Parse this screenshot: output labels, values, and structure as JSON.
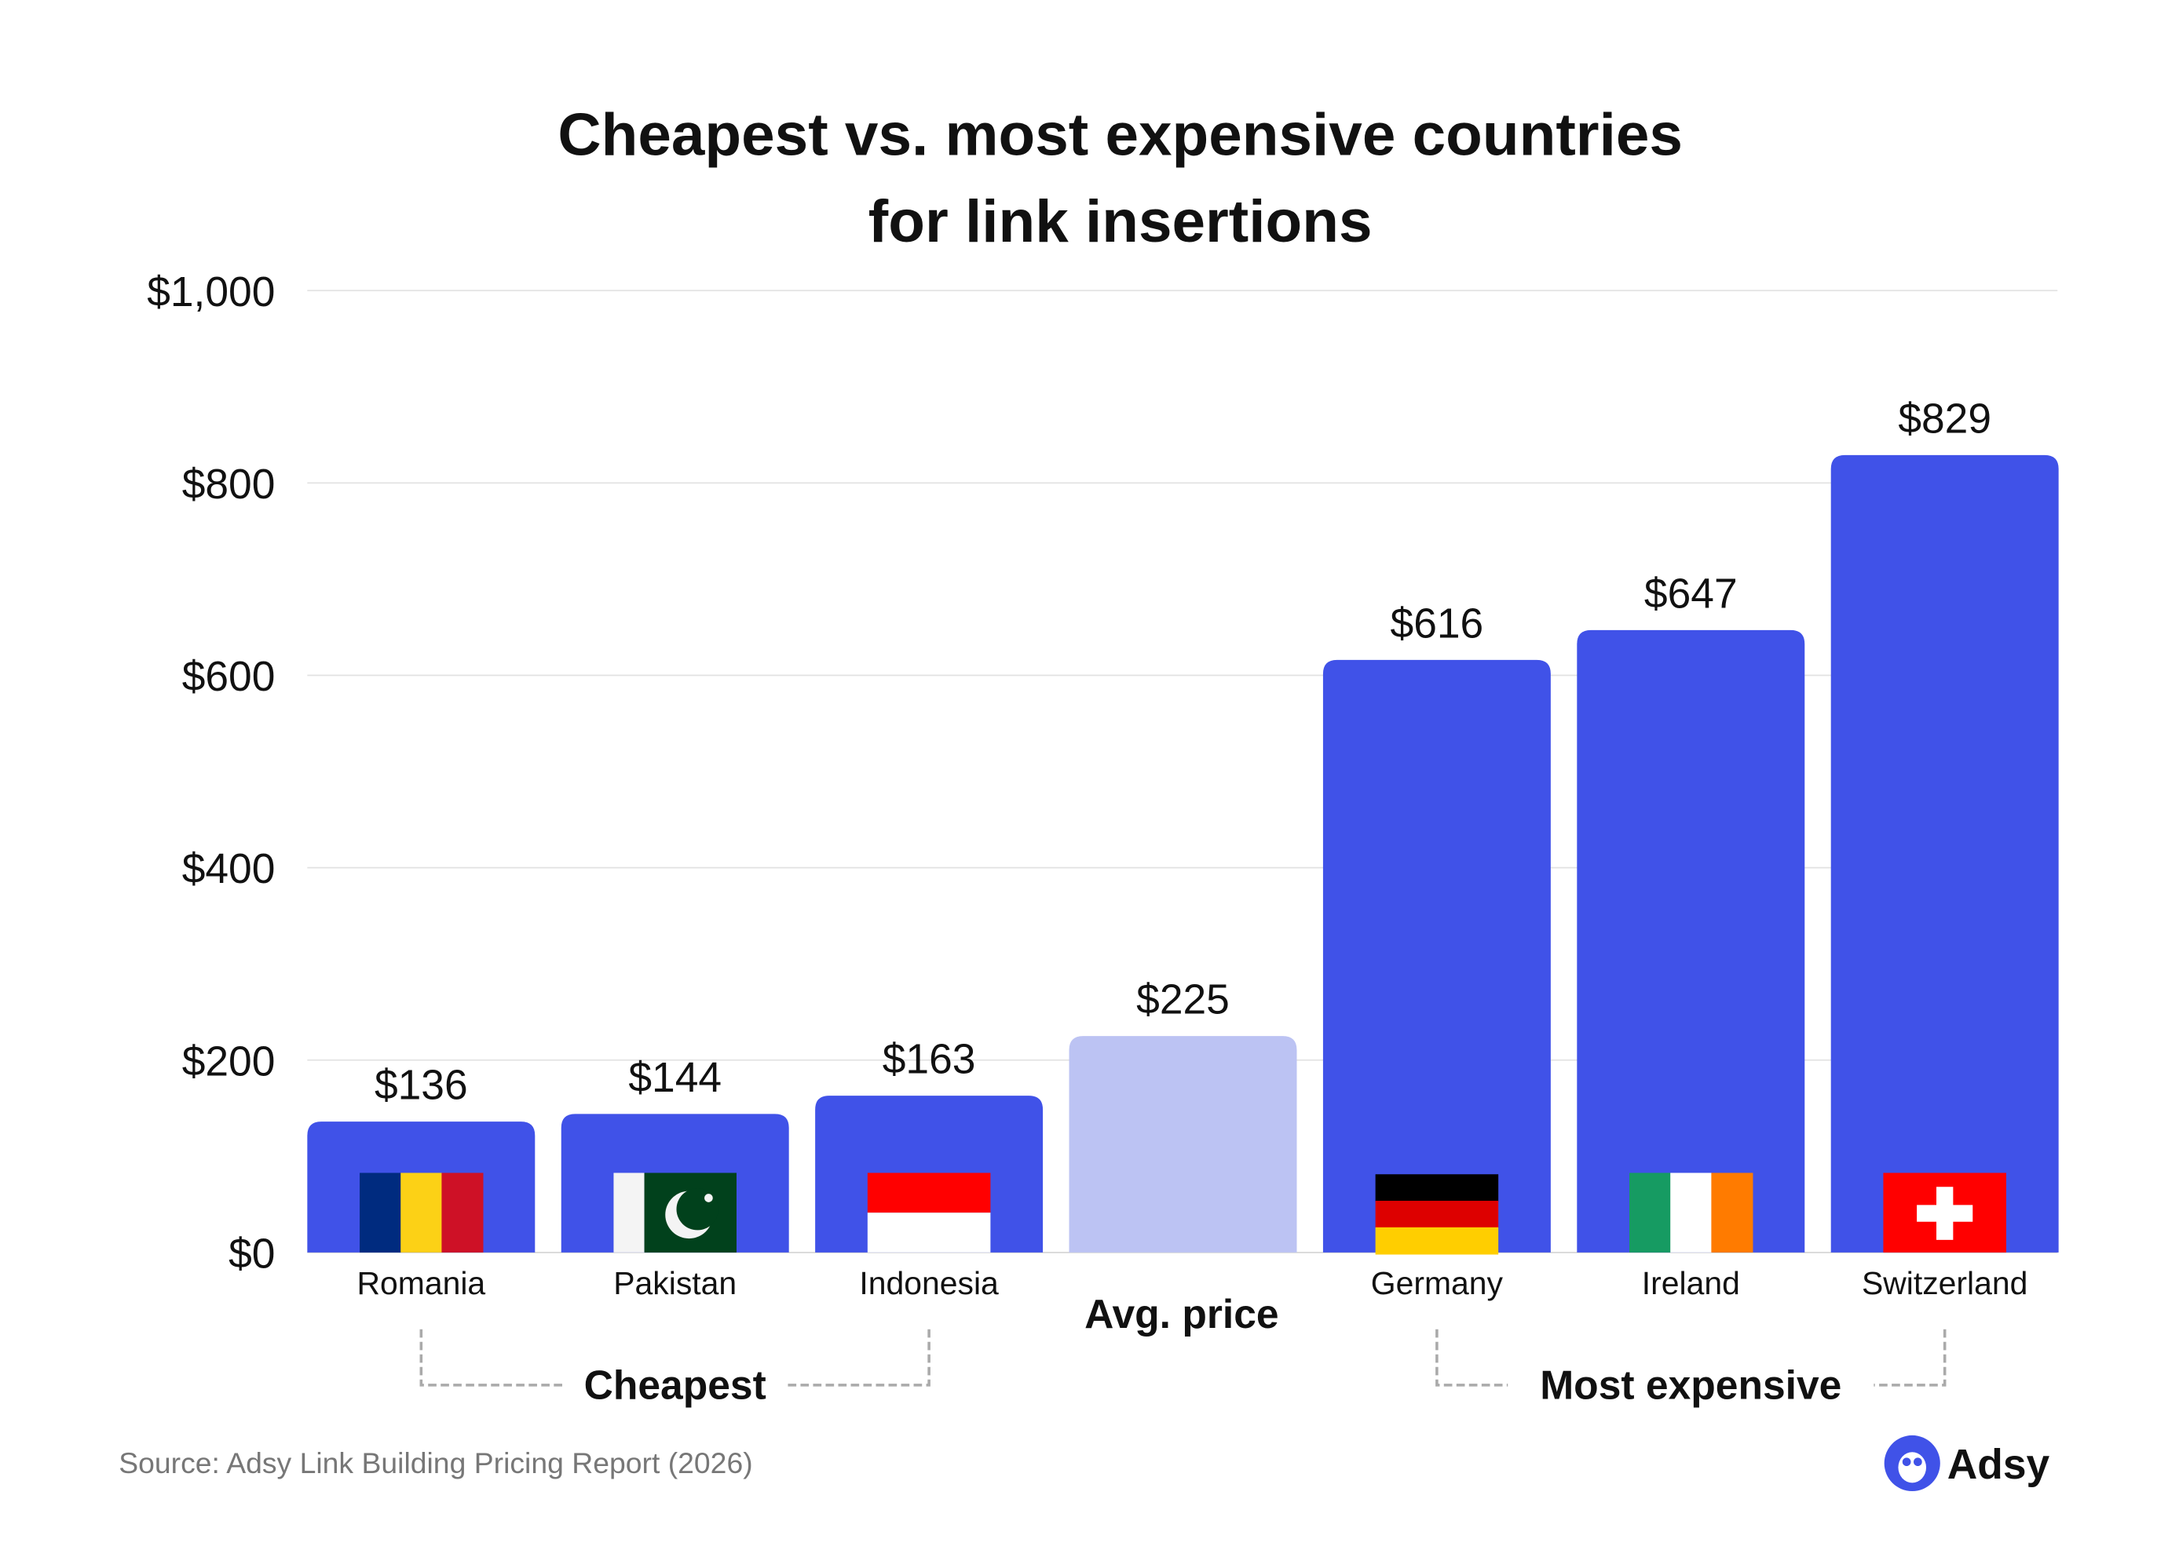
{
  "chart_data": {
    "type": "bar",
    "title": [
      "Cheapest vs. most expensive countries",
      "for link insertions"
    ],
    "categories": [
      "Romania",
      "Pakistan",
      "Indonesia",
      "",
      "Germany",
      "Ireland",
      "Switzerland"
    ],
    "values": [
      136,
      144,
      163,
      225,
      616,
      647,
      829
    ],
    "value_labels": [
      "$136",
      "$144",
      "$163",
      "$225",
      "$616",
      "$647",
      "$829"
    ],
    "flags": [
      "romania-flag",
      "pakistan-flag",
      "indonesia-flag",
      null,
      "germany-flag",
      "ireland-flag",
      "switzerland-flag"
    ],
    "bar_colors": [
      "#4052e8",
      "#4052e8",
      "#4052e8",
      "#bcc3f3",
      "#4052e8",
      "#4052e8",
      "#4052e8"
    ],
    "ylim": [
      0,
      1000
    ],
    "yticks": [
      0,
      200,
      400,
      600,
      800,
      1000
    ],
    "ytick_labels": [
      "$0",
      "$200",
      "$400",
      "$600",
      "$800",
      "$1,000"
    ],
    "grid": true,
    "xlabel": "",
    "ylabel": "",
    "avg_label": "Avg. price",
    "groups": [
      {
        "label": "Cheapest",
        "from": 0,
        "to": 2
      },
      {
        "label": "Most expensive",
        "from": 4,
        "to": 6
      }
    ]
  },
  "footer": {
    "source": "Source: Adsy Link Building Pricing Report (2026)",
    "logo_text": "Adsy",
    "logo_icon": "owl-icon",
    "brand_color": "#4052e8"
  }
}
